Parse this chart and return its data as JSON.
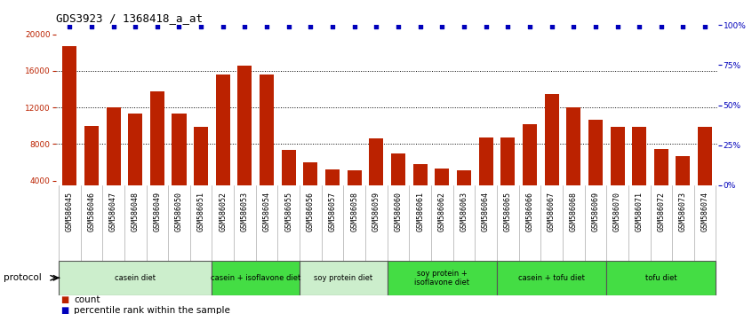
{
  "title": "GDS3923 / 1368418_a_at",
  "samples": [
    "GSM586045",
    "GSM586046",
    "GSM586047",
    "GSM586048",
    "GSM586049",
    "GSM586050",
    "GSM586051",
    "GSM586052",
    "GSM586053",
    "GSM586054",
    "GSM586055",
    "GSM586056",
    "GSM586057",
    "GSM586058",
    "GSM586059",
    "GSM586060",
    "GSM586061",
    "GSM586062",
    "GSM586063",
    "GSM586064",
    "GSM586065",
    "GSM586066",
    "GSM586067",
    "GSM586068",
    "GSM586069",
    "GSM586070",
    "GSM586071",
    "GSM586072",
    "GSM586073",
    "GSM586074"
  ],
  "counts": [
    18700,
    10000,
    12000,
    11300,
    13800,
    11300,
    9900,
    15600,
    16600,
    15600,
    7400,
    6000,
    5200,
    5100,
    8600,
    7000,
    5800,
    5300,
    5100,
    8700,
    8700,
    10200,
    13500,
    12000,
    10700,
    9900,
    9900,
    7500,
    6700,
    9900
  ],
  "protocols": [
    {
      "label": "casein diet",
      "start": 0,
      "end": 7,
      "light": true
    },
    {
      "label": "casein + isoflavone diet",
      "start": 7,
      "end": 11,
      "light": false
    },
    {
      "label": "soy protein diet",
      "start": 11,
      "end": 15,
      "light": true
    },
    {
      "label": "soy protein +\nisoflavone diet",
      "start": 15,
      "end": 20,
      "light": false
    },
    {
      "label": "casein + tofu diet",
      "start": 20,
      "end": 25,
      "light": false
    },
    {
      "label": "tofu diet",
      "start": 25,
      "end": 30,
      "light": false
    }
  ],
  "bar_color": "#BB2200",
  "dot_color": "#0000BB",
  "ylim_left": [
    3500,
    21000
  ],
  "ylim_right": [
    0,
    100
  ],
  "yticks_left": [
    4000,
    8000,
    12000,
    16000,
    20000
  ],
  "yticks_right": [
    0,
    25,
    50,
    75,
    100
  ],
  "background_color": "#FFFFFF",
  "title_fontsize": 9,
  "tick_fontsize": 6.5,
  "legend_fontsize": 7.5,
  "protocol_label": "protocol",
  "bar_width": 0.65,
  "light_green": "#CCEECC",
  "dark_green": "#44DD44",
  "proto_border": "#555555",
  "sample_bg": "#DDDDDD",
  "sample_tick_fontsize": 6
}
